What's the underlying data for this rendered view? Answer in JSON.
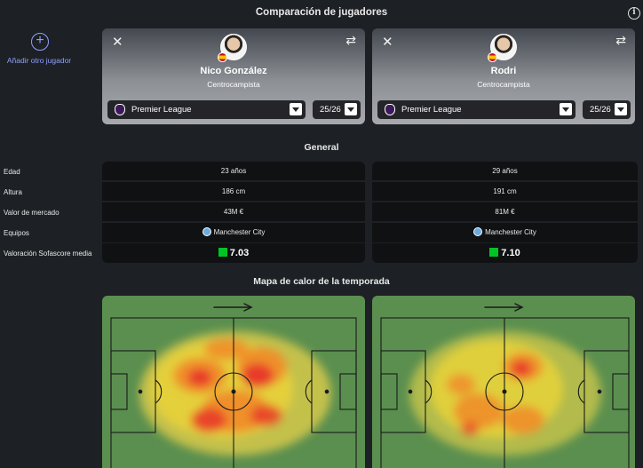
{
  "page": {
    "title": "Comparación de jugadores"
  },
  "add_player": {
    "label": "Añadir otro jugador"
  },
  "players": [
    {
      "name": "Nico González",
      "position": "Centrocampista",
      "league": "Premier League",
      "season": "25/26",
      "age": "23 años",
      "height": "186 cm",
      "market_value": "43M €",
      "team": "Manchester City",
      "rating": "7.03"
    },
    {
      "name": "Rodri",
      "position": "Centrocampista",
      "league": "Premier League",
      "season": "25/26",
      "age": "29 años",
      "height": "191 cm",
      "market_value": "81M €",
      "team": "Manchester City",
      "rating": "7.10"
    }
  ],
  "general": {
    "title": "General",
    "labels": {
      "age": "Edad",
      "height": "Altura",
      "market_value": "Valor de mercado",
      "teams": "Equipos",
      "rating": "Valoración Sofascore media"
    }
  },
  "heatmap": {
    "title": "Mapa de calor de la temporada"
  },
  "colors": {
    "accent": "#8ea0ff",
    "rating_green": "#00c424",
    "pitch": "#5b8f4f",
    "card_bg": "#0f1113"
  }
}
